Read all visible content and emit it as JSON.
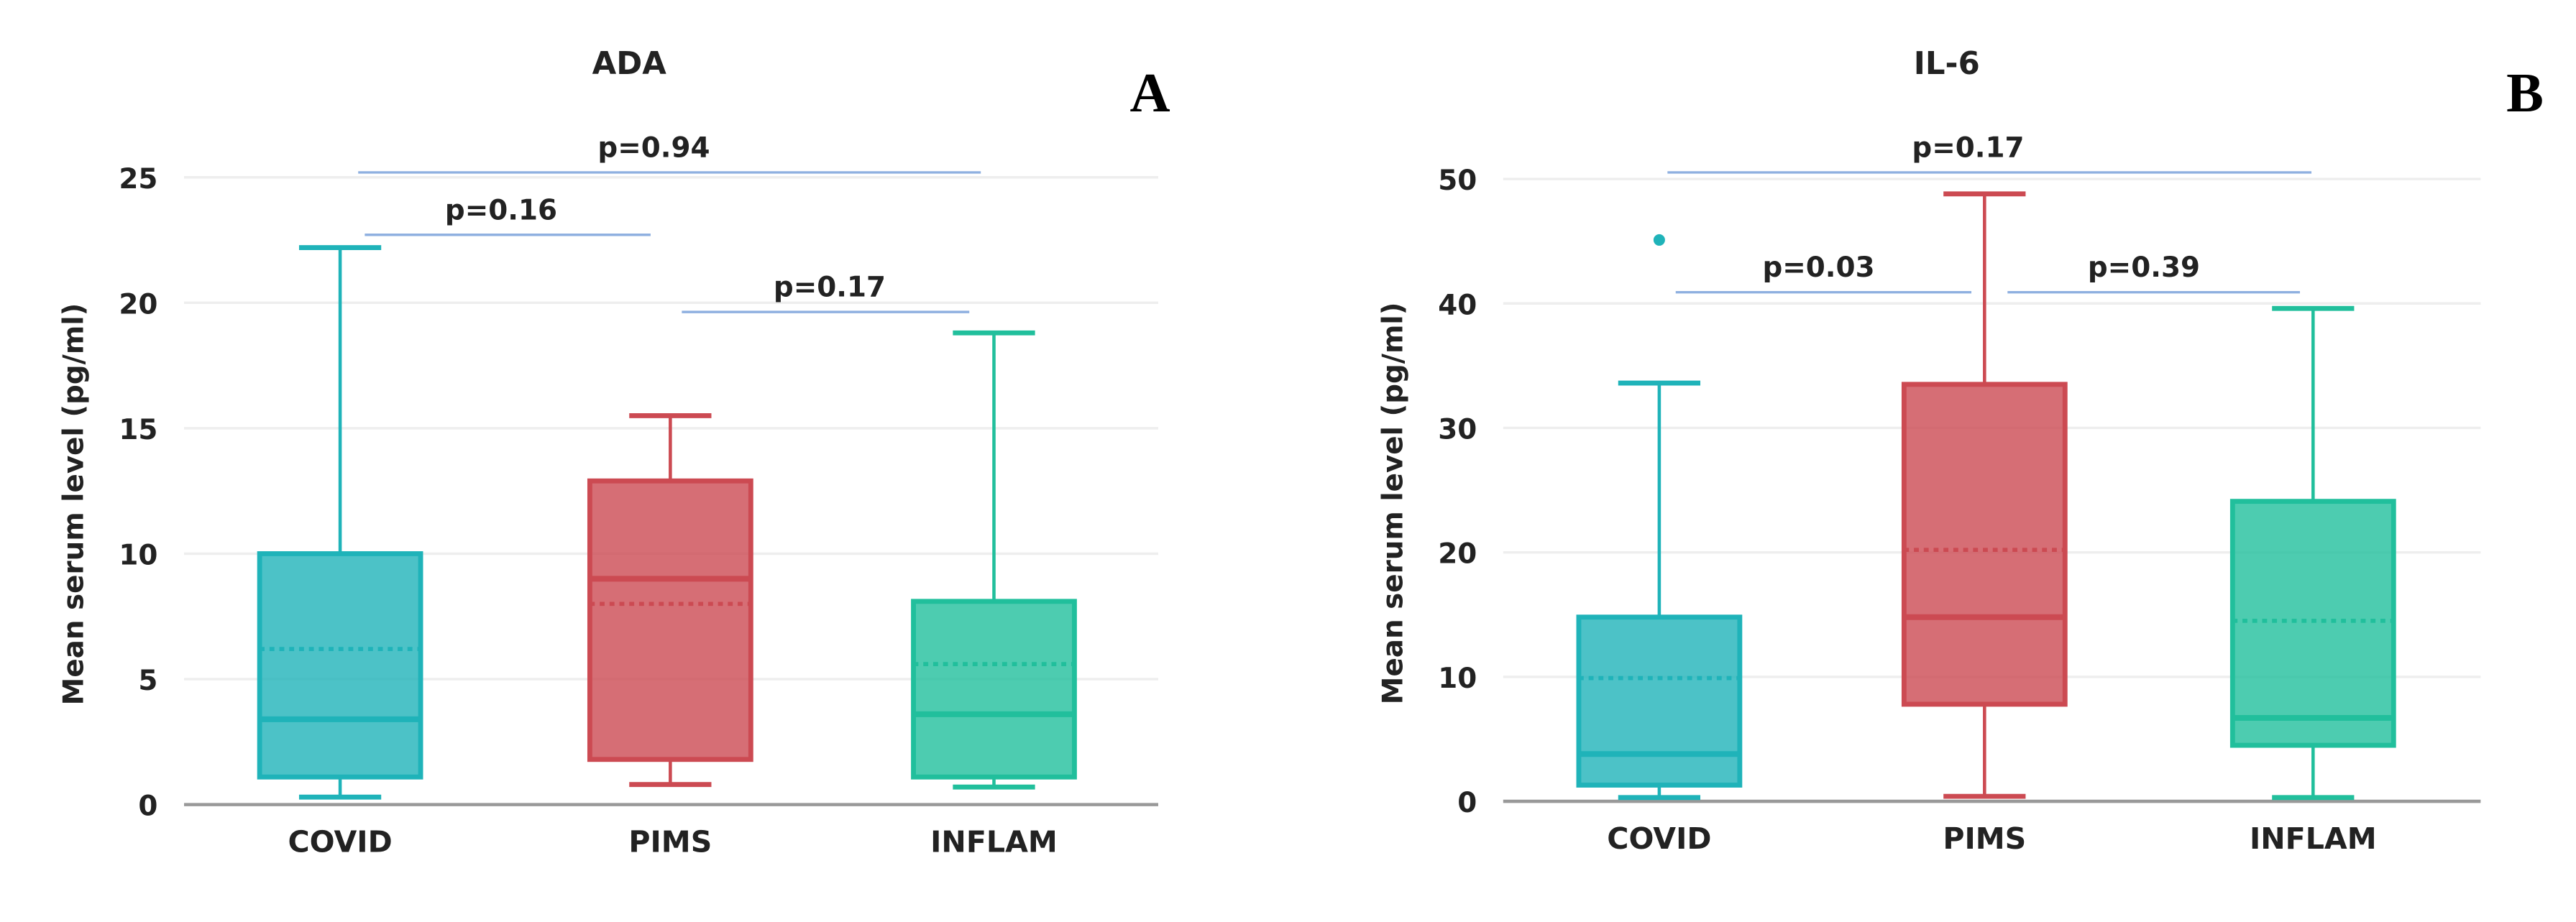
{
  "chart_data": [
    {
      "type": "box",
      "title": "ADA",
      "panel_label": "A",
      "y_label": "Mean serum level (pg/ml)",
      "categories": [
        "COVID",
        "PIMS",
        "INFLAM"
      ],
      "colors": [
        "#1fb3b9",
        "#cc4a52",
        "#21bf9c"
      ],
      "boxes": [
        {
          "min": 0.3,
          "q1": 1.1,
          "median": 3.4,
          "mean": 6.2,
          "q3": 10,
          "max": 22.2,
          "outliers": []
        },
        {
          "min": 0.8,
          "q1": 1.8,
          "median": 9.0,
          "mean": 8.0,
          "q3": 12.9,
          "max": 15.5,
          "outliers": []
        },
        {
          "min": 0.7,
          "q1": 1.1,
          "median": 3.6,
          "mean": 5.6,
          "q3": 8.1,
          "max": 18.8,
          "outliers": []
        }
      ],
      "ylim": [
        0,
        25
      ],
      "yticks": [
        0,
        5,
        10,
        15,
        20,
        25
      ],
      "grid": true,
      "annotations": [
        "p=0.94",
        "p=0.16",
        "p=0.17"
      ]
    },
    {
      "type": "box",
      "title": "IL-6",
      "panel_label": "B",
      "y_label": "Mean serum level (pg/ml)",
      "categories": [
        "COVID",
        "PIMS",
        "INFLAM"
      ],
      "colors": [
        "#1fb3b9",
        "#cc4a52",
        "#21bf9c"
      ],
      "boxes": [
        {
          "min": 0.3,
          "q1": 1.3,
          "median": 3.8,
          "mean": 9.9,
          "q3": 14.8,
          "max": 33.6,
          "outliers": [
            45.1
          ]
        },
        {
          "min": 0.4,
          "q1": 7.8,
          "median": 14.8,
          "mean": 20.2,
          "q3": 33.5,
          "max": 48.8,
          "outliers": []
        },
        {
          "min": 0.3,
          "q1": 4.5,
          "median": 6.7,
          "mean": 14.5,
          "q3": 24.1,
          "max": 39.6,
          "outliers": []
        }
      ],
      "ylim": [
        0,
        50
      ],
      "yticks": [
        0,
        10,
        20,
        30,
        40,
        50
      ],
      "grid": true,
      "annotations": [
        "p=0.17",
        "p=0.03",
        "p=0.39"
      ]
    }
  ]
}
